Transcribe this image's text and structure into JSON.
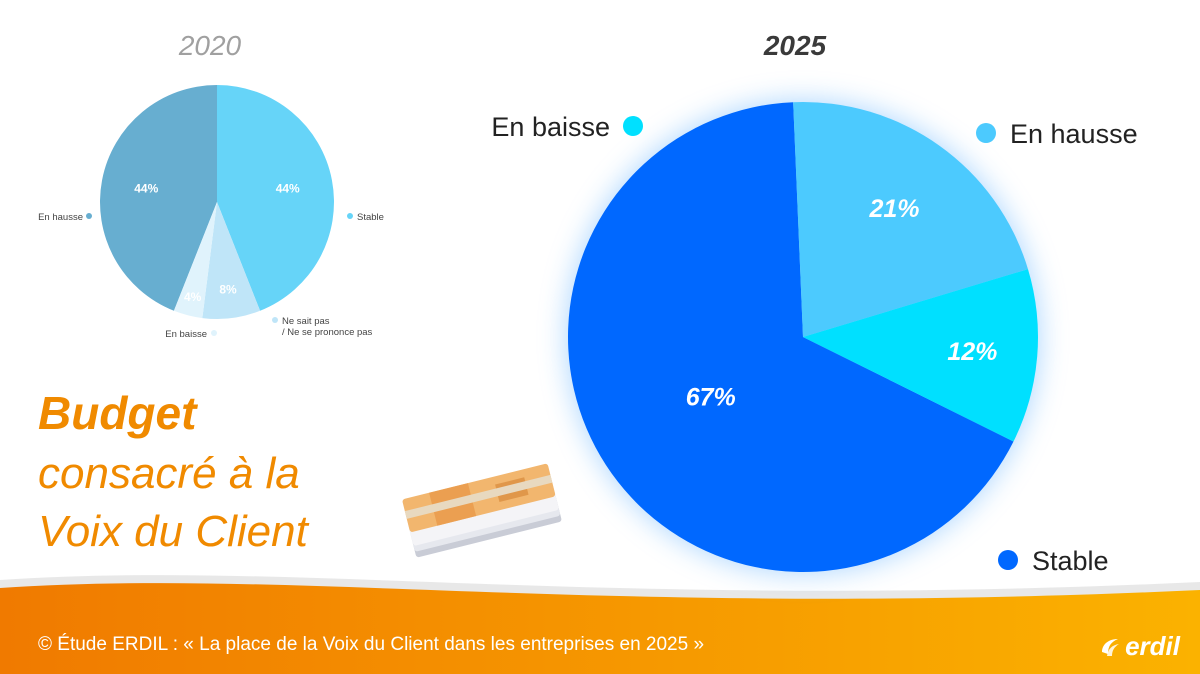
{
  "colors": {
    "accent": "#f08a00",
    "footer_start": "#f07a00",
    "footer_end": "#fbb200",
    "pie2020": [
      "#67aed0",
      "#66d4f8",
      "#bfe5f8",
      "#e0f3fc"
    ],
    "pie2025": [
      "#0068ff",
      "#4ccafe",
      "#00e0ff"
    ]
  },
  "chart_data": [
    {
      "type": "pie",
      "title": "2020",
      "labels": [
        "En hausse",
        "Stable",
        "Ne sait pas / Ne se prononce pas",
        "En baisse"
      ],
      "values": [
        44,
        44,
        8,
        4
      ],
      "value_labels": [
        "44%",
        "44%",
        "8%",
        "4%"
      ],
      "legend_labels": [
        "En hausse",
        "Stable",
        "Ne sait pas",
        "/ Ne se prononce pas",
        "En baisse"
      ]
    },
    {
      "type": "pie",
      "title": "2025",
      "labels": [
        "Stable",
        "En hausse",
        "En baisse"
      ],
      "values": [
        67,
        21,
        12
      ],
      "value_labels": [
        "67%",
        "21%",
        "12%"
      ],
      "legend_labels": [
        "Stable",
        "En hausse",
        "En baisse"
      ]
    }
  ],
  "headline": {
    "title": "Budget",
    "line1": "consacré à la",
    "line2": "Voix du Client"
  },
  "footer": {
    "source": "© Étude ERDIL : « La place de la Voix du Client dans les entreprises en 2025 »",
    "logo": "erdil"
  },
  "icons": {
    "money": "banknote-stack-icon",
    "logo": "erdil-logo-icon"
  }
}
